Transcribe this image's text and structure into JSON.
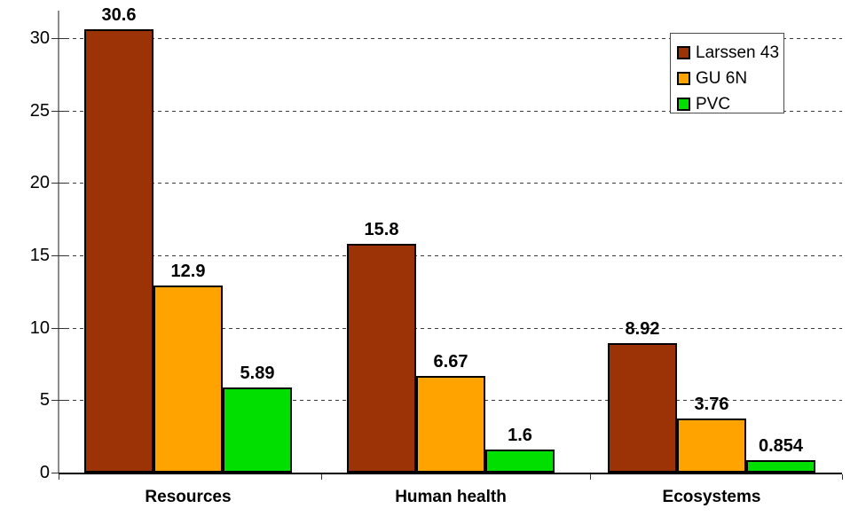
{
  "chart_data": {
    "type": "bar",
    "categories": [
      "Resources",
      "Human health",
      "Ecosystems"
    ],
    "series": [
      {
        "name": "Larssen 43",
        "color": "#9C3306",
        "values": [
          30.6,
          15.8,
          8.92
        ],
        "labels": [
          "30.6",
          "15.8",
          "8.92"
        ]
      },
      {
        "name": "GU 6N",
        "color": "#FFA300",
        "values": [
          12.9,
          6.67,
          3.76
        ],
        "labels": [
          "12.9",
          "6.67",
          "3.76"
        ]
      },
      {
        "name": "PVC",
        "color": "#00DF00",
        "values": [
          5.89,
          1.6,
          0.854
        ],
        "labels": [
          "5.89",
          "1.6",
          "0.854"
        ]
      }
    ],
    "title": "",
    "xlabel": "",
    "ylabel": "",
    "ylim": [
      0,
      30
    ],
    "yticks": [
      0,
      5,
      10,
      15,
      20,
      25,
      30
    ],
    "grid": "horizontal-dashed",
    "legend_position": "top-right"
  },
  "colors": {
    "background": "#FFFFFF",
    "y_axis": "#8C8C8C",
    "x_axis": "#000000",
    "tick": "#333333",
    "grid": "#3A3A3A",
    "bar_border": "#000000",
    "legend_border": "#4D4D4D",
    "text": "#000000"
  }
}
